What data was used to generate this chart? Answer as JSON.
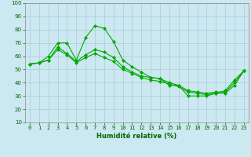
{
  "title": "",
  "xlabel": "Humidité relative (%)",
  "ylabel": "",
  "background_color": "#cce8f0",
  "grid_color": "#aaccdd",
  "line_color": "#00aa00",
  "x": [
    0,
    1,
    2,
    3,
    4,
    5,
    6,
    7,
    8,
    9,
    10,
    11,
    12,
    13,
    14,
    15,
    16,
    17,
    18,
    19,
    20,
    21,
    22,
    23
  ],
  "series1": [
    54,
    55,
    60,
    70,
    70,
    57,
    74,
    83,
    81,
    71,
    57,
    52,
    48,
    44,
    43,
    38,
    38,
    30,
    30,
    30,
    32,
    34,
    42,
    49
  ],
  "series2": [
    54,
    55,
    57,
    67,
    62,
    56,
    61,
    65,
    63,
    59,
    52,
    48,
    45,
    44,
    43,
    40,
    38,
    34,
    33,
    32,
    33,
    33,
    40,
    49
  ],
  "series3": [
    54,
    55,
    57,
    65,
    61,
    55,
    59,
    62,
    59,
    56,
    50,
    47,
    44,
    42,
    41,
    39,
    37,
    33,
    32,
    31,
    32,
    32,
    38,
    49
  ],
  "ylim": [
    10,
    100
  ],
  "xlim": [
    -0.5,
    23.5
  ],
  "yticks": [
    10,
    20,
    30,
    40,
    50,
    60,
    70,
    80,
    90,
    100
  ],
  "xticks": [
    0,
    1,
    2,
    3,
    4,
    5,
    6,
    7,
    8,
    9,
    10,
    11,
    12,
    13,
    14,
    15,
    16,
    17,
    18,
    19,
    20,
    21,
    22,
    23
  ],
  "marker": "D",
  "markersize": 2,
  "linewidth": 0.8,
  "tick_fontsize": 5,
  "xlabel_fontsize": 6
}
